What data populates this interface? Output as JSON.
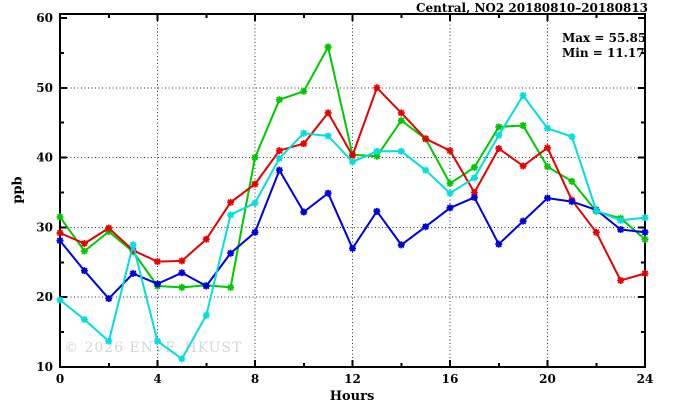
{
  "chart_data": {
    "type": "line",
    "title": "Central, NO2 20180810–20180813",
    "xlabel": "Hours",
    "ylabel": "ppb",
    "xlim": [
      0,
      24
    ],
    "ylim": [
      10,
      60
    ],
    "x_major_ticks": [
      0,
      4,
      8,
      12,
      16,
      20,
      24
    ],
    "x_minor_ticks": [
      2,
      6,
      10,
      14,
      18,
      22
    ],
    "y_major_ticks": [
      10,
      20,
      30,
      40,
      50,
      60
    ],
    "y_minor_ticks": [
      15,
      25,
      35,
      45,
      55
    ],
    "grid_x_lines": [
      4,
      8,
      12,
      16,
      20
    ],
    "grid_y_lines": [
      20,
      30,
      40,
      50
    ],
    "legend_position": "none",
    "annotations": {
      "max_label": "Max = 55.85",
      "min_label": "Min = 11.17"
    },
    "watermark": "© 2026 ENVF, HKUST",
    "x": [
      0,
      1,
      2,
      3,
      4,
      5,
      6,
      7,
      8,
      9,
      10,
      11,
      12,
      13,
      14,
      15,
      16,
      17,
      18,
      19,
      20,
      21,
      22,
      23,
      24
    ],
    "series": [
      {
        "name": "series-green",
        "color": "#00c800",
        "marker": "star",
        "values": [
          31.5,
          26.6,
          29.4,
          26.5,
          21.6,
          21.4,
          21.7,
          21.4,
          40.0,
          48.3,
          49.5,
          55.85,
          40.4,
          40.2,
          45.3,
          42.7,
          36.3,
          38.6,
          44.4,
          44.6,
          38.7,
          36.6,
          32.3,
          31.3,
          28.3
        ]
      },
      {
        "name": "series-red",
        "color": "#e60000",
        "marker": "star",
        "values": [
          29.2,
          27.7,
          29.9,
          26.7,
          25.1,
          25.2,
          28.3,
          33.6,
          36.2,
          41.0,
          42.0,
          46.4,
          40.3,
          50.0,
          46.4,
          42.7,
          41.0,
          35.0,
          41.3,
          38.8,
          41.4,
          33.9,
          29.3,
          22.4,
          23.4
        ]
      },
      {
        "name": "series-blue",
        "color": "#0000dd",
        "marker": "filled-square-star",
        "values": [
          28.1,
          23.8,
          19.8,
          23.4,
          21.9,
          23.5,
          21.6,
          26.3,
          29.3,
          38.2,
          32.2,
          34.9,
          27.0,
          32.3,
          27.5,
          30.1,
          32.8,
          34.3,
          27.6,
          30.9,
          34.2,
          33.7,
          32.5,
          29.7,
          29.3
        ]
      },
      {
        "name": "series-cyan",
        "color": "#00dede",
        "marker": "star",
        "values": [
          19.6,
          16.8,
          13.7,
          27.5,
          13.7,
          11.17,
          17.4,
          31.8,
          33.5,
          39.9,
          43.5,
          43.1,
          39.4,
          40.9,
          40.9,
          38.2,
          34.9,
          37.1,
          43.2,
          48.9,
          44.2,
          43.0,
          32.4,
          31.0,
          31.4
        ]
      }
    ]
  }
}
